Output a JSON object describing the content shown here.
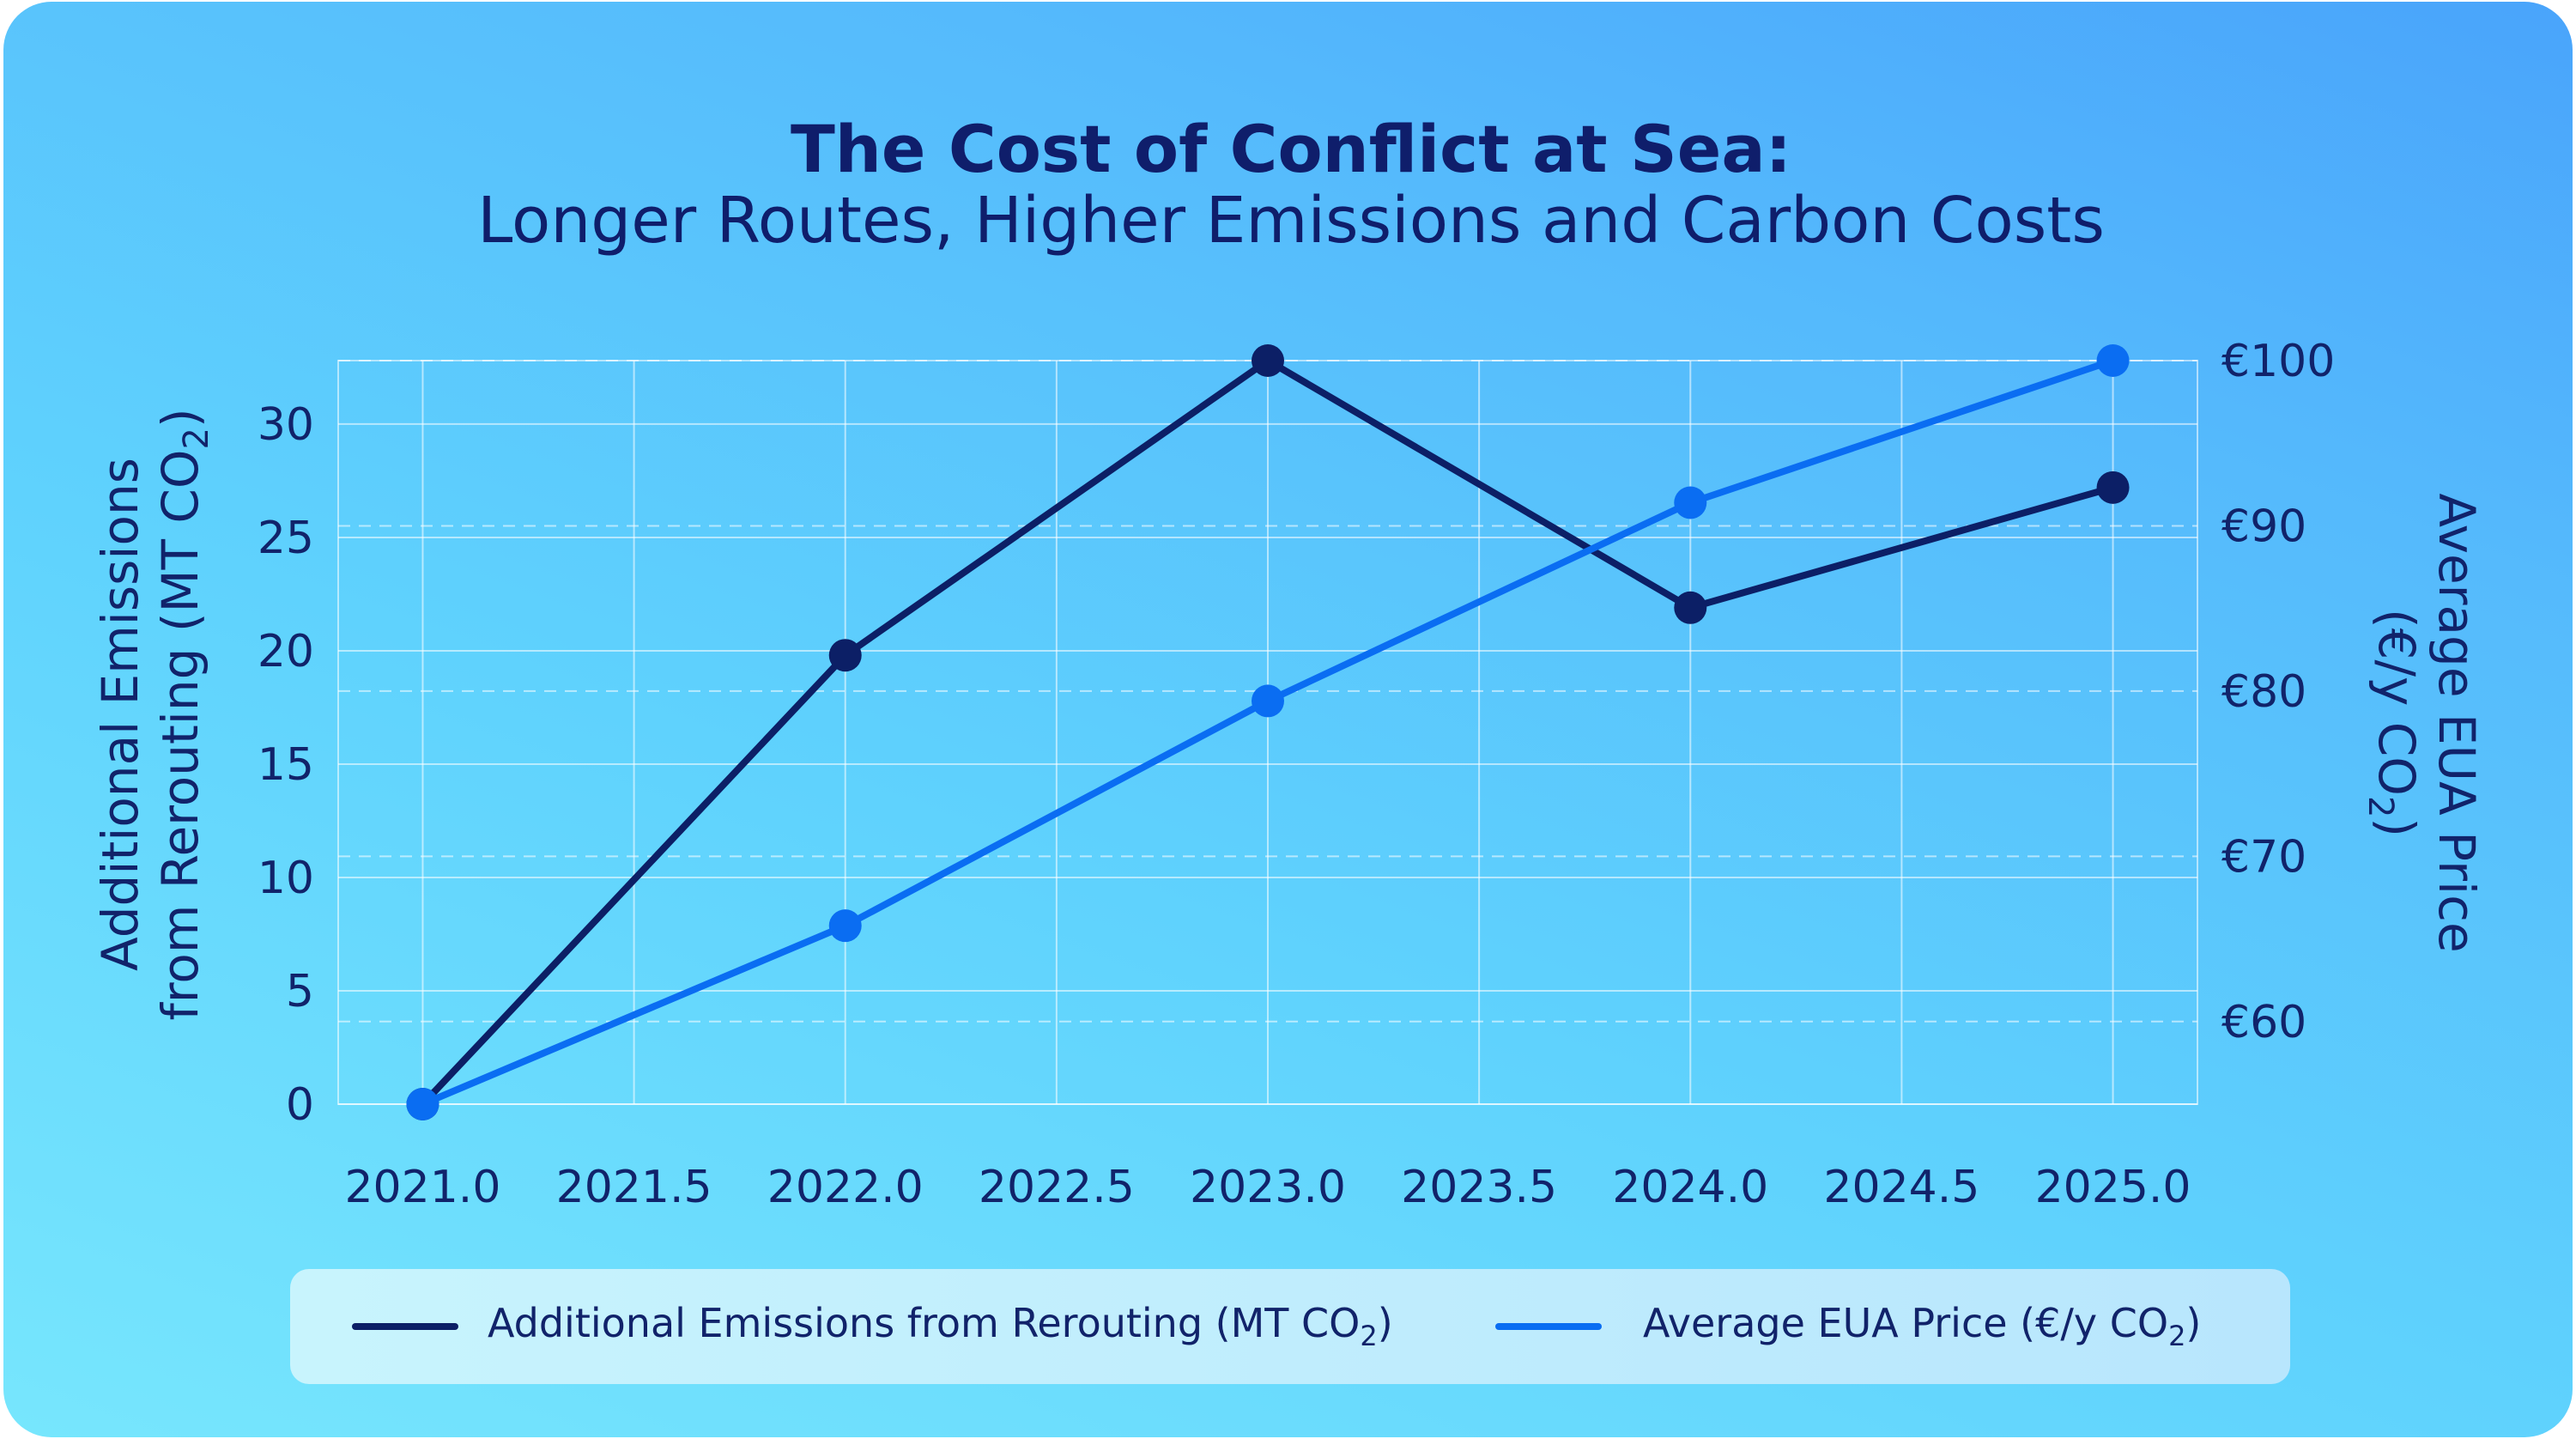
{
  "chart_data": {
    "type": "line",
    "title": "The Cost of Conflict at Sea:",
    "subtitle": "Longer Routes, Higher Emissions and Carbon Costs",
    "ylabel_left": {
      "line1": "Additional Emissions",
      "line2_prefix": "from Rerouting (MT CO",
      "line2_sub": "2",
      "line2_suffix": ")"
    },
    "ylabel_right": {
      "line1": "Average EUA Price",
      "line2_prefix": "(€/y CO",
      "line2_sub": "2",
      "line2_suffix": ")"
    },
    "xlim": [
      2020.8,
      2025.2
    ],
    "ylim_left": [
      0,
      32.8
    ],
    "ylim_right": [
      55,
      100
    ],
    "x_ticks": [
      "2021.0",
      "2021.5",
      "2022.0",
      "2022.5",
      "2023.0",
      "2023.5",
      "2024.0",
      "2024.5",
      "2025.0"
    ],
    "x_tick_values": [
      2021.0,
      2021.5,
      2022.0,
      2022.5,
      2023.0,
      2023.5,
      2024.0,
      2024.5,
      2025.0
    ],
    "y_left_ticks": [
      "0",
      "5",
      "10",
      "15",
      "20",
      "25",
      "30"
    ],
    "y_left_tick_values": [
      0,
      5,
      10,
      15,
      20,
      25,
      30
    ],
    "y_right_ticks": [
      "€60",
      "€70",
      "€80",
      "€90",
      "€100"
    ],
    "y_right_tick_values": [
      60,
      70,
      80,
      90,
      100
    ],
    "grid": true,
    "legend_position": "bottom",
    "series": [
      {
        "name": "Additional Emissions from Rerouting (MT CO",
        "name_sub": "2",
        "name_suffix": ")",
        "axis": "left",
        "color": "#0c1f66",
        "x": [
          2021,
          2022,
          2023,
          2024,
          2025
        ],
        "values": [
          0,
          19.8,
          32.8,
          21.9,
          27.2
        ]
      },
      {
        "name": "Average EUA Price (€/y CO",
        "name_sub": "2",
        "name_suffix": ")",
        "axis": "right",
        "color": "#0a6df2",
        "x": [
          2021,
          2022,
          2023,
          2024,
          2025
        ],
        "values": [
          55,
          65.8,
          79.4,
          91.4,
          100
        ]
      }
    ]
  }
}
